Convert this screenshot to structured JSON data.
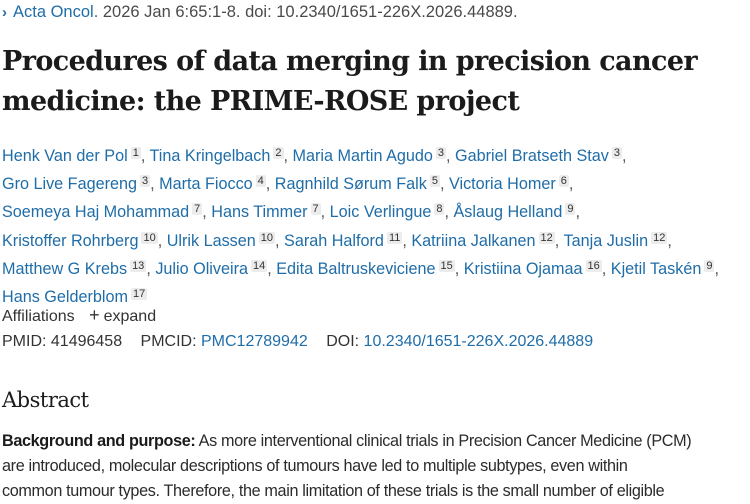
{
  "citation": {
    "journal": "Acta Oncol.",
    "details": " 2026 Jan 6:65:1-8. doi: 10.2340/1651-226X.2026.44889."
  },
  "title": "Procedures of data merging in precision cancer medicine: the PRIME-ROSE project",
  "authors": [
    {
      "name": "Henk Van der Pol",
      "aff": "1"
    },
    {
      "name": "Tina Kringelbach",
      "aff": "2"
    },
    {
      "name": "Maria Martin Agudo",
      "aff": "3"
    },
    {
      "name": "Gabriel Bratseth Stav",
      "aff": "3"
    },
    {
      "name": "Gro Live Fagereng",
      "aff": "3"
    },
    {
      "name": "Marta Fiocco",
      "aff": "4"
    },
    {
      "name": "Ragnhild Sørum Falk",
      "aff": "5"
    },
    {
      "name": "Victoria Homer",
      "aff": "6"
    },
    {
      "name": "Soemeya Haj Mohammad",
      "aff": "7"
    },
    {
      "name": "Hans Timmer",
      "aff": "7"
    },
    {
      "name": "Loic Verlingue",
      "aff": "8"
    },
    {
      "name": "Åslaug Helland",
      "aff": "9"
    },
    {
      "name": "Kristoffer Rohrberg",
      "aff": "10"
    },
    {
      "name": "Ulrik Lassen",
      "aff": "10"
    },
    {
      "name": "Sarah Halford",
      "aff": "11"
    },
    {
      "name": "Katriina Jalkanen",
      "aff": "12"
    },
    {
      "name": "Tanja Juslin",
      "aff": "12"
    },
    {
      "name": "Matthew G Krebs",
      "aff": "13"
    },
    {
      "name": "Julio Oliveira",
      "aff": "14"
    },
    {
      "name": "Edita Baltruskeviciene",
      "aff": "15"
    },
    {
      "name": "Kristiina Ojamaa",
      "aff": "16"
    },
    {
      "name": "Kjetil Taskén",
      "aff": "9"
    },
    {
      "name": "Hans Gelderblom",
      "aff": "17"
    }
  ],
  "affiliations": {
    "label": "Affiliations",
    "expand_icon": "plus-icon",
    "expand_label": "expand"
  },
  "identifiers": {
    "pmid_label": "PMID:",
    "pmid": "41496458",
    "pmcid_label": "PMCID:",
    "pmcid": "PMC12789942",
    "doi_label": "DOI:",
    "doi": "10.2340/1651-226X.2026.44889"
  },
  "abstract": {
    "heading": "Abstract",
    "section_label": "Background and purpose:",
    "lines": [
      " As more interventional clinical trials in Precision Cancer Medicine (PCM)",
      "are introduced, molecular descriptions of tumours have led to multiple subtypes, even within",
      "common tumour types. Therefore, the main limitation of these trials is the small number of eligible"
    ]
  }
}
